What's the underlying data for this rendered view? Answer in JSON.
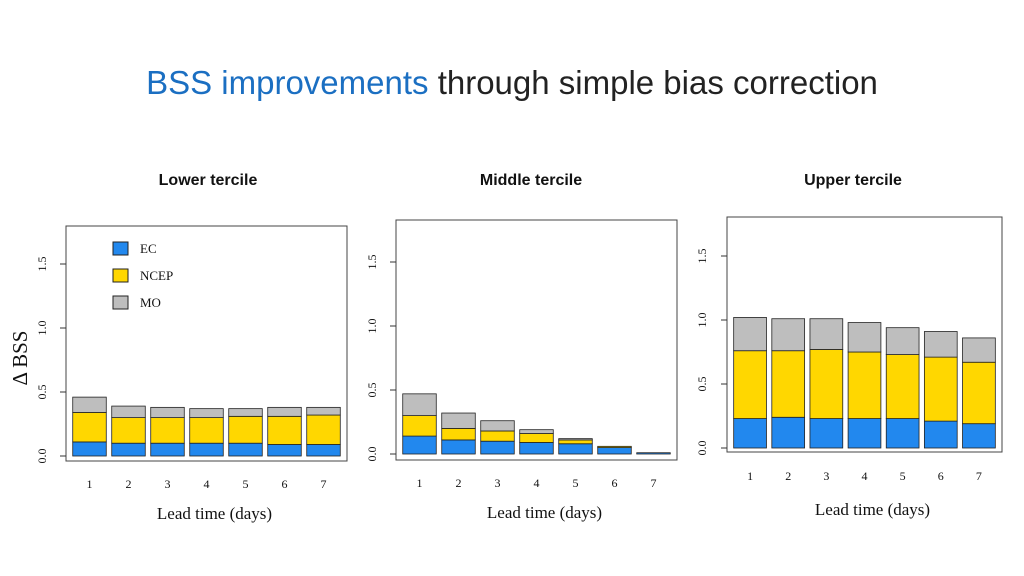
{
  "slide": {
    "title_highlight": "BSS improvements",
    "title_rest": "through simple bias correction",
    "ylabel": "Δ BSS"
  },
  "colors": {
    "EC": "#2288ee",
    "NCEP": "#ffd700",
    "MO": "#bebebe",
    "frame": "#444444"
  },
  "chart_data": [
    {
      "type": "bar",
      "stacked": true,
      "title": "Lower tercile",
      "xlabel": "Lead time (days)",
      "ylabel": "",
      "categories": [
        "1",
        "2",
        "3",
        "4",
        "5",
        "6",
        "7"
      ],
      "ylim": [
        0,
        1.8
      ],
      "yticks": [
        0.0,
        0.5,
        1.0,
        1.5
      ],
      "legend": {
        "position": "top-left",
        "entries": [
          "EC",
          "NCEP",
          "MO"
        ]
      },
      "series": [
        {
          "name": "EC",
          "values": [
            0.11,
            0.1,
            0.1,
            0.1,
            0.1,
            0.09,
            0.09
          ]
        },
        {
          "name": "NCEP",
          "values": [
            0.23,
            0.2,
            0.2,
            0.2,
            0.21,
            0.22,
            0.23
          ]
        },
        {
          "name": "MO",
          "values": [
            0.12,
            0.09,
            0.08,
            0.07,
            0.06,
            0.07,
            0.06
          ]
        }
      ]
    },
    {
      "type": "bar",
      "stacked": true,
      "title": "Middle tercile",
      "xlabel": "Lead time (days)",
      "ylabel": "",
      "categories": [
        "1",
        "2",
        "3",
        "4",
        "5",
        "6",
        "7"
      ],
      "ylim": [
        0,
        1.8
      ],
      "yticks": [
        0.0,
        0.5,
        1.0,
        1.5
      ],
      "series": [
        {
          "name": "EC",
          "values": [
            0.14,
            0.11,
            0.1,
            0.09,
            0.08,
            0.05,
            0.01
          ]
        },
        {
          "name": "NCEP",
          "values": [
            0.16,
            0.09,
            0.08,
            0.07,
            0.03,
            0.01,
            0.0
          ]
        },
        {
          "name": "MO",
          "values": [
            0.17,
            0.12,
            0.08,
            0.03,
            0.01,
            0.0,
            0.0
          ]
        }
      ]
    },
    {
      "type": "bar",
      "stacked": true,
      "title": "Upper tercile",
      "xlabel": "Lead time (days)",
      "ylabel": "",
      "categories": [
        "1",
        "2",
        "3",
        "4",
        "5",
        "6",
        "7"
      ],
      "ylim": [
        0,
        1.8
      ],
      "yticks": [
        0.0,
        0.5,
        1.0,
        1.5
      ],
      "series": [
        {
          "name": "EC",
          "values": [
            0.23,
            0.24,
            0.23,
            0.23,
            0.23,
            0.21,
            0.19
          ]
        },
        {
          "name": "NCEP",
          "values": [
            0.53,
            0.52,
            0.54,
            0.52,
            0.5,
            0.5,
            0.48
          ]
        },
        {
          "name": "MO",
          "values": [
            0.26,
            0.25,
            0.24,
            0.23,
            0.21,
            0.2,
            0.19
          ]
        }
      ]
    }
  ]
}
